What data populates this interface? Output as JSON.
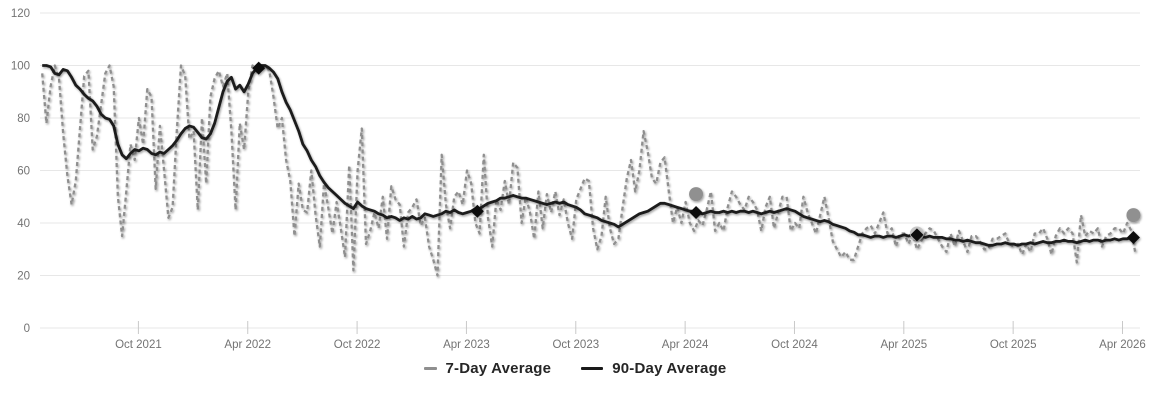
{
  "colors": {
    "background": "#ffffff",
    "gridline": "#e7e7e7",
    "tick_mark": "#c9c9c9",
    "axis_label": "#737373",
    "series_7day": "#8f8f8f",
    "series_90day": "#1a1a1a",
    "diamond_marker": "#111111",
    "circle_marker": "#909090",
    "circle_marker_light": "#c6c6c6"
  },
  "chart_data": {
    "type": "line",
    "title": "",
    "xlabel": "",
    "ylabel": "",
    "grid": true,
    "legend_position": "bottom",
    "x_range": [
      2021.3,
      2026.33
    ],
    "ylim": [
      0,
      120
    ],
    "y_ticks": [
      0,
      20,
      40,
      60,
      80,
      100,
      120
    ],
    "x_ticks": [
      {
        "label": "Oct 2021",
        "x": 2021.75
      },
      {
        "label": "Apr 2022",
        "x": 2022.25
      },
      {
        "label": "Oct 2022",
        "x": 2022.75
      },
      {
        "label": "Apr 2023",
        "x": 2023.25
      },
      {
        "label": "Oct 2023",
        "x": 2023.75
      },
      {
        "label": "Apr 2024",
        "x": 2024.25
      },
      {
        "label": "Oct 2024",
        "x": 2024.75
      },
      {
        "label": "Apr 2025",
        "x": 2025.25
      },
      {
        "label": "Oct 2025",
        "x": 2025.75
      },
      {
        "label": "Apr 2026",
        "x": 2026.25
      }
    ],
    "series": [
      {
        "name": "7-Day Average",
        "style": "dashed",
        "color": "#8f8f8f",
        "x0": 2021.31,
        "dx": 0.019231,
        "values": [
          97,
          78,
          92,
          100,
          95,
          74,
          58,
          47,
          56,
          76,
          96,
          98,
          68,
          73,
          85,
          97,
          100,
          92,
          50,
          35,
          52,
          70,
          64,
          80,
          70,
          91,
          88,
          53,
          77,
          60,
          42,
          46,
          75,
          100,
          96,
          72,
          75,
          45,
          80,
          55,
          88,
          95,
          98,
          92,
          97,
          75,
          45,
          78,
          68,
          90,
          100,
          98,
          99,
          100,
          98,
          88,
          76,
          80,
          64,
          56,
          35,
          55,
          45,
          44,
          60,
          43,
          31,
          55,
          46,
          36,
          48,
          38,
          27,
          62,
          22,
          60,
          76,
          32,
          37,
          44,
          38,
          50,
          34,
          54,
          49,
          47,
          31,
          44,
          46,
          49,
          39,
          42,
          31,
          26,
          20,
          66,
          47,
          38,
          50,
          52,
          47,
          60,
          55,
          40,
          36,
          66,
          42,
          31,
          49,
          45,
          56,
          47,
          63,
          61,
          40,
          50,
          44,
          34,
          52,
          38,
          51,
          44,
          52,
          43,
          49,
          40,
          34,
          49,
          53,
          57,
          56,
          38,
          30,
          35,
          50,
          38,
          32,
          34,
          46,
          57,
          64,
          52,
          60,
          75,
          67,
          57,
          55,
          63,
          65,
          52,
          40,
          46,
          40,
          48,
          40,
          37,
          41,
          39,
          45,
          52,
          37,
          40,
          37,
          46,
          52,
          50,
          47,
          45,
          50,
          48,
          45,
          37,
          46,
          50,
          38,
          44,
          50,
          50,
          37,
          40,
          38,
          50,
          44,
          40,
          36,
          43,
          50,
          42,
          33,
          30,
          27,
          29,
          26,
          26,
          31,
          36,
          38,
          39,
          36,
          40,
          44,
          36,
          38,
          31,
          36,
          36,
          32,
          36,
          30,
          33,
          36,
          38,
          37,
          34,
          31,
          29,
          36,
          31,
          37,
          33,
          29,
          35,
          35,
          33,
          30,
          30,
          34,
          34,
          35,
          36,
          32,
          31,
          32,
          28,
          32,
          29,
          36,
          36,
          38,
          34,
          28,
          35,
          38,
          36,
          38,
          36,
          25,
          43,
          35,
          37,
          36,
          38,
          31,
          35,
          36,
          38,
          38,
          36,
          40,
          37,
          28
        ]
      },
      {
        "name": "90-Day Average",
        "style": "solid",
        "color": "#1a1a1a",
        "x0": 2021.31,
        "dx": 0.019231,
        "values": [
          100,
          100,
          99.5,
          97,
          96.5,
          98.5,
          98,
          95.5,
          92.5,
          91,
          89,
          87.5,
          86.5,
          84.5,
          81.5,
          80,
          79.5,
          77,
          70,
          66,
          64.5,
          66.5,
          68,
          67.5,
          68.5,
          68,
          66.5,
          66,
          67,
          66.5,
          68,
          69.5,
          71.5,
          74,
          76,
          77,
          76.5,
          74.5,
          72.5,
          72,
          74,
          78,
          84,
          90,
          94,
          95.5,
          91,
          92.5,
          90,
          93,
          97,
          99,
          100,
          100,
          99,
          97.5,
          95,
          90,
          86,
          83,
          79,
          75,
          70,
          67.5,
          64,
          61.5,
          58,
          55.5,
          53.5,
          52,
          50.5,
          49,
          47.5,
          46.5,
          45.5,
          48,
          46.5,
          45.5,
          45,
          44.5,
          43.5,
          43,
          42,
          42.5,
          42,
          41,
          42,
          41.5,
          42.5,
          41.5,
          42,
          43.5,
          43,
          42.5,
          43,
          43.5,
          44.5,
          44,
          45,
          44,
          43.5,
          44,
          44.5,
          45.5,
          45.5,
          46.5,
          47.5,
          48,
          48.5,
          49.5,
          49.5,
          50,
          50.5,
          50,
          49.5,
          49.5,
          49,
          48.5,
          48,
          47.5,
          47,
          47.5,
          48,
          47.5,
          48,
          47,
          46.5,
          46,
          45,
          43.5,
          43,
          42.5,
          42,
          41,
          40.5,
          40,
          39.5,
          38.5,
          39.5,
          40.5,
          41.5,
          42.5,
          43.5,
          44,
          44.5,
          45.5,
          46.5,
          47.5,
          47.5,
          47,
          46.5,
          46,
          45.5,
          45,
          44.5,
          44.5,
          44,
          43.5,
          44,
          44.5,
          44,
          44,
          44.5,
          44,
          44.5,
          44,
          44.5,
          44.5,
          44,
          44.5,
          44,
          43.5,
          44,
          44.5,
          44,
          44.5,
          45,
          45.5,
          45,
          44.5,
          43.5,
          42.5,
          42,
          41.5,
          41,
          40.5,
          41,
          40.5,
          39.5,
          39,
          38.5,
          38,
          37,
          36.5,
          35.5,
          35.5,
          35,
          34.5,
          35,
          35,
          34.5,
          35,
          35,
          34.5,
          35,
          35.5,
          35,
          35.5,
          35.5,
          35,
          34.5,
          35,
          34.5,
          34.5,
          34.5,
          34,
          34,
          33.5,
          33.5,
          33,
          33.5,
          33,
          32.5,
          32.5,
          32,
          31.5,
          31.5,
          32,
          32,
          32.5,
          32,
          32,
          31.5,
          32,
          32,
          32.5,
          32,
          32.5,
          33,
          32.5,
          32.5,
          33,
          33,
          33.5,
          33,
          33,
          32.5,
          33,
          33.5,
          33,
          33.5,
          33.5,
          33,
          33.5,
          33.5,
          34,
          33.5,
          34,
          34,
          34.5,
          34.5
        ]
      }
    ],
    "markers": {
      "diamonds": [
        {
          "x": 2022.3,
          "y": 99
        },
        {
          "x": 2023.3,
          "y": 44.5
        },
        {
          "x": 2024.3,
          "y": 44
        },
        {
          "x": 2025.31,
          "y": 35.5
        },
        {
          "x": 2026.3,
          "y": 34.5
        }
      ],
      "circles": [
        {
          "x": 2024.3,
          "y": 51,
          "color": "#909090"
        },
        {
          "x": 2025.31,
          "y": 36,
          "color": "#c6c6c6"
        },
        {
          "x": 2026.3,
          "y": 43,
          "color": "#909090"
        }
      ]
    }
  },
  "legend": {
    "items": [
      {
        "label": "7-Day Average"
      },
      {
        "label": "90-Day Average"
      }
    ]
  }
}
